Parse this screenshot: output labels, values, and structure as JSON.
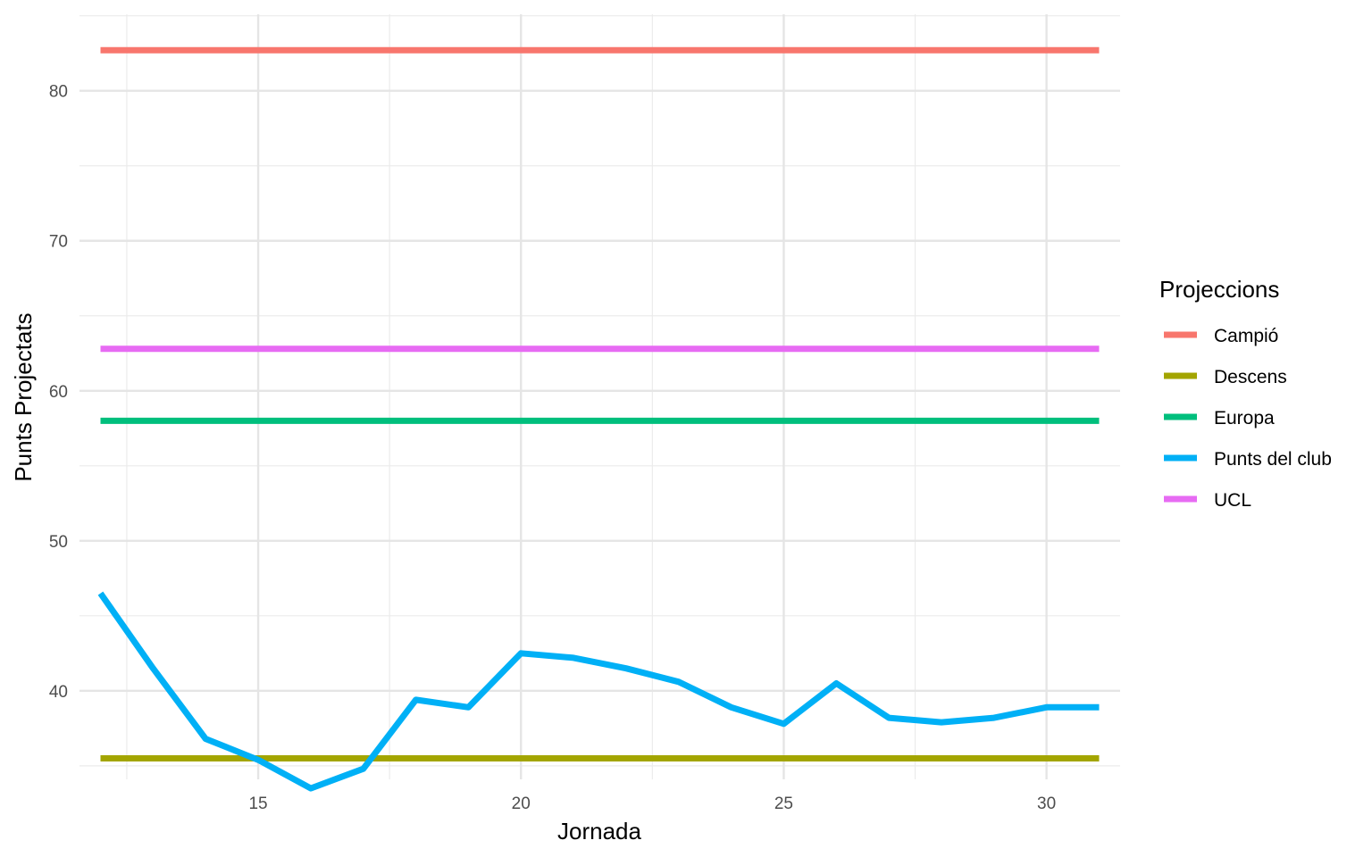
{
  "chart_data": {
    "type": "line",
    "xlabel": "Jornada",
    "ylabel": "Punts Projectats",
    "xlim": [
      11.6,
      31.4
    ],
    "ylim": [
      34.1,
      85.1
    ],
    "xticks": [
      15,
      20,
      25,
      30
    ],
    "xminor": [
      12.5,
      17.5,
      22.5,
      27.5
    ],
    "yticks": [
      40,
      50,
      60,
      70,
      80
    ],
    "yminor": [
      35,
      45,
      55,
      65,
      75,
      85
    ],
    "grid": true,
    "legend": {
      "title": "Projeccions",
      "placement": "right"
    },
    "x": [
      12,
      13,
      14,
      15,
      16,
      17,
      18,
      19,
      20,
      21,
      22,
      23,
      24,
      25,
      26,
      27,
      28,
      29,
      30,
      31
    ],
    "series": [
      {
        "name": "Campió",
        "color": "#F8766D",
        "values": [
          82.7,
          82.7,
          82.7,
          82.7,
          82.7,
          82.7,
          82.7,
          82.7,
          82.7,
          82.7,
          82.7,
          82.7,
          82.7,
          82.7,
          82.7,
          82.7,
          82.7,
          82.7,
          82.7,
          82.7
        ]
      },
      {
        "name": "Descens",
        "color": "#A3A500",
        "values": [
          35.5,
          35.5,
          35.5,
          35.5,
          35.5,
          35.5,
          35.5,
          35.5,
          35.5,
          35.5,
          35.5,
          35.5,
          35.5,
          35.5,
          35.5,
          35.5,
          35.5,
          35.5,
          35.5,
          35.5
        ]
      },
      {
        "name": "Europa",
        "color": "#00BF7D",
        "values": [
          58.0,
          58.0,
          58.0,
          58.0,
          58.0,
          58.0,
          58.0,
          58.0,
          58.0,
          58.0,
          58.0,
          58.0,
          58.0,
          58.0,
          58.0,
          58.0,
          58.0,
          58.0,
          58.0,
          58.0
        ]
      },
      {
        "name": "Punts del club",
        "color": "#00B0F6",
        "values": [
          46.5,
          41.5,
          36.8,
          35.4,
          33.5,
          34.8,
          39.4,
          38.9,
          42.5,
          42.2,
          41.5,
          40.6,
          38.9,
          37.8,
          40.5,
          38.2,
          37.9,
          38.2,
          38.9,
          38.9
        ]
      },
      {
        "name": "UCL",
        "color": "#E76BF3",
        "values": [
          62.8,
          62.8,
          62.8,
          62.8,
          62.8,
          62.8,
          62.8,
          62.8,
          62.8,
          62.8,
          62.8,
          62.8,
          62.8,
          62.8,
          62.8,
          62.8,
          62.8,
          62.8,
          62.8,
          62.8
        ]
      }
    ]
  }
}
